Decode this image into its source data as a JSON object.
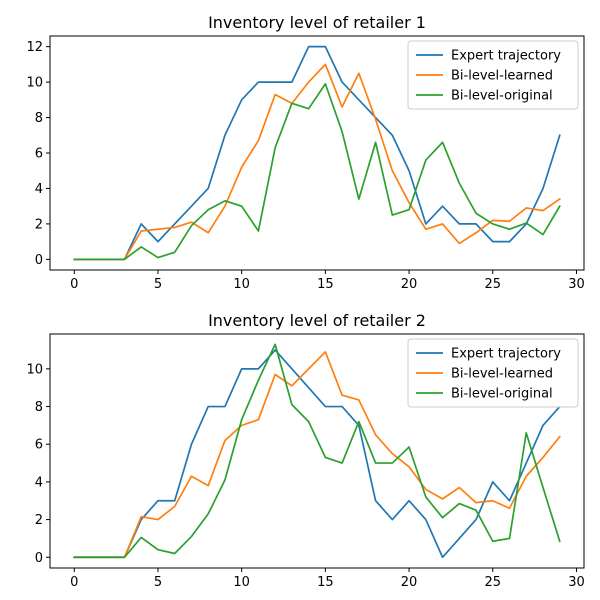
{
  "chart_data": [
    {
      "type": "line",
      "title": "Inventory level of retailer 1",
      "xlabel": "",
      "ylabel": "",
      "xlim": [
        -1.45,
        30.45
      ],
      "ylim": [
        -0.6,
        12.6
      ],
      "xticks": [
        0,
        5,
        10,
        15,
        20,
        25,
        30
      ],
      "yticks": [
        0,
        2,
        4,
        6,
        8,
        10,
        12
      ],
      "grid": false,
      "legend": "top-right",
      "x": [
        0,
        1,
        2,
        3,
        4,
        5,
        6,
        7,
        8,
        9,
        10,
        11,
        12,
        13,
        14,
        15,
        16,
        17,
        18,
        19,
        20,
        21,
        22,
        23,
        24,
        25,
        26,
        27,
        28,
        29
      ],
      "series": [
        {
          "name": "Expert trajectory",
          "color": "#1f77b4",
          "values": [
            0,
            0,
            0,
            0,
            2,
            1,
            2,
            3,
            4,
            7,
            9,
            10,
            10,
            10,
            12,
            12,
            10,
            9,
            8,
            7,
            5,
            2,
            3,
            2,
            2,
            1,
            1,
            2,
            4,
            7
          ]
        },
        {
          "name": "Bi-level-learned",
          "color": "#ff7f0e",
          "values": [
            0,
            0,
            0,
            0,
            1.6,
            1.7,
            1.8,
            2.1,
            1.5,
            3.0,
            5.2,
            6.7,
            9.3,
            8.8,
            10.0,
            11.0,
            8.6,
            10.5,
            7.9,
            5.0,
            3.2,
            1.7,
            2.0,
            0.9,
            1.5,
            2.2,
            2.15,
            2.9,
            2.75,
            3.4
          ]
        },
        {
          "name": "Bi-level-original",
          "color": "#2ca02c",
          "values": [
            0,
            0,
            0,
            0,
            0.7,
            0.1,
            0.4,
            1.9,
            2.8,
            3.3,
            3.0,
            1.6,
            6.3,
            8.8,
            8.5,
            9.9,
            7.2,
            3.4,
            6.6,
            2.5,
            2.8,
            5.6,
            6.6,
            4.3,
            2.6,
            2.0,
            1.7,
            2.05,
            1.4,
            3.0
          ]
        }
      ]
    },
    {
      "type": "line",
      "title": "Inventory level of retailer 2",
      "xlabel": "",
      "ylabel": "",
      "xlim": [
        -1.45,
        30.45
      ],
      "ylim": [
        -0.57,
        11.85
      ],
      "xticks": [
        0,
        5,
        10,
        15,
        20,
        25,
        30
      ],
      "yticks": [
        0,
        2,
        4,
        6,
        8,
        10
      ],
      "grid": false,
      "legend": "top-right",
      "x": [
        0,
        1,
        2,
        3,
        4,
        5,
        6,
        7,
        8,
        9,
        10,
        11,
        12,
        13,
        14,
        15,
        16,
        17,
        18,
        19,
        20,
        21,
        22,
        23,
        24,
        25,
        26,
        27,
        28,
        29
      ],
      "series": [
        {
          "name": "Expert trajectory",
          "color": "#1f77b4",
          "values": [
            0,
            0,
            0,
            0,
            2,
            3,
            3,
            6,
            8,
            8,
            10,
            10,
            11,
            10,
            9,
            8,
            8,
            7,
            3,
            2,
            3,
            2,
            0,
            1,
            2,
            4,
            3,
            5,
            7,
            8
          ]
        },
        {
          "name": "Bi-level-learned",
          "color": "#ff7f0e",
          "values": [
            0,
            0,
            0,
            0,
            2.15,
            2.0,
            2.7,
            4.3,
            3.8,
            6.2,
            7.0,
            7.3,
            9.7,
            9.1,
            10.0,
            10.9,
            8.6,
            8.35,
            6.5,
            5.5,
            4.8,
            3.6,
            3.1,
            3.7,
            2.9,
            3.0,
            2.6,
            4.3,
            5.3,
            6.4
          ]
        },
        {
          "name": "Bi-level-original",
          "color": "#2ca02c",
          "values": [
            0,
            0,
            0,
            0,
            1.05,
            0.4,
            0.2,
            1.1,
            2.3,
            4.1,
            7.3,
            9.4,
            11.3,
            8.1,
            7.2,
            5.3,
            5.0,
            7.2,
            5.0,
            5.0,
            5.85,
            3.2,
            2.1,
            2.85,
            2.5,
            0.85,
            1.0,
            6.6,
            3.7,
            0.85
          ]
        }
      ]
    }
  ]
}
